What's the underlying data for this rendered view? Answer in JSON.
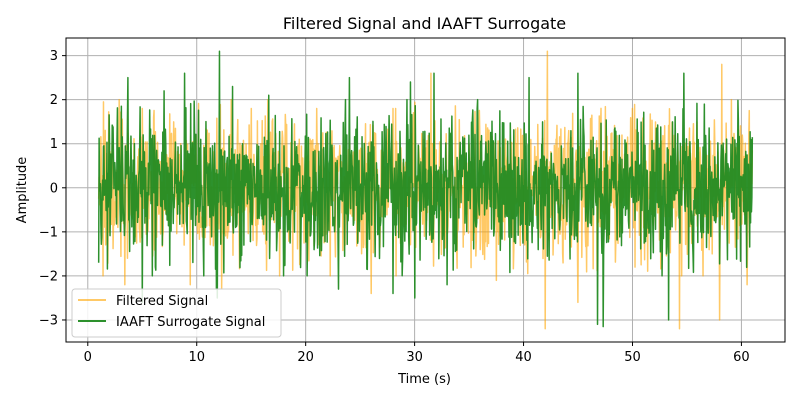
{
  "chart_data": {
    "type": "line",
    "title": "Filtered Signal and IAAFT Surrogate",
    "xlabel": "Time (s)",
    "ylabel": "Amplitude",
    "xlim": [
      -2,
      64
    ],
    "ylim": [
      -3.5,
      3.4
    ],
    "x_ticks": [
      0,
      10,
      20,
      30,
      40,
      50,
      60
    ],
    "y_ticks": [
      -3,
      -2,
      -1,
      0,
      1,
      2,
      3
    ],
    "x_tick_labels": [
      "0",
      "10",
      "20",
      "30",
      "40",
      "50",
      "60"
    ],
    "y_tick_labels": [
      "−3",
      "−2",
      "−1",
      "0",
      "1",
      "2",
      "3"
    ],
    "grid": true,
    "legend_position": "lower-left",
    "x_range": [
      1,
      61
    ],
    "series": [
      {
        "name": "Filtered Signal",
        "color": "#ffa500",
        "opacity": 0.6,
        "min": -3.2,
        "max": 3.1,
        "spikes": [
          {
            "x": 3.4,
            "y": -2.2
          },
          {
            "x": 5.0,
            "y": 1.8
          },
          {
            "x": 9.4,
            "y": -2.2
          },
          {
            "x": 12.3,
            "y": -2.3
          },
          {
            "x": 15.0,
            "y": 1.8
          },
          {
            "x": 21.0,
            "y": 1.8
          },
          {
            "x": 26.0,
            "y": -2.4
          },
          {
            "x": 28.0,
            "y": 1.8
          },
          {
            "x": 31.5,
            "y": 2.6
          },
          {
            "x": 37.5,
            "y": -2.1
          },
          {
            "x": 42.2,
            "y": 3.1
          },
          {
            "x": 42.0,
            "y": -3.2
          },
          {
            "x": 45.0,
            "y": -2.6
          },
          {
            "x": 50.0,
            "y": 1.8
          },
          {
            "x": 54.3,
            "y": -3.2
          },
          {
            "x": 58.0,
            "y": -3.0
          },
          {
            "x": 58.2,
            "y": 2.8
          },
          {
            "x": 60.5,
            "y": -2.2
          }
        ]
      },
      {
        "name": "IAAFT Surrogate Signal",
        "color": "#228b22",
        "opacity": 0.95,
        "min": -3.15,
        "max": 3.1,
        "spikes": [
          {
            "x": 1.0,
            "y": -1.7
          },
          {
            "x": 3.7,
            "y": 2.5
          },
          {
            "x": 5.0,
            "y": -2.6
          },
          {
            "x": 7.0,
            "y": 2.2
          },
          {
            "x": 8.9,
            "y": 2.6
          },
          {
            "x": 11.8,
            "y": -2.3
          },
          {
            "x": 12.1,
            "y": 3.1
          },
          {
            "x": 11.9,
            "y": -2.5
          },
          {
            "x": 13.3,
            "y": 2.3
          },
          {
            "x": 16.6,
            "y": 2.1
          },
          {
            "x": 23.0,
            "y": -2.3
          },
          {
            "x": 24.0,
            "y": 2.5
          },
          {
            "x": 28.0,
            "y": -2.4
          },
          {
            "x": 29.6,
            "y": 2.4
          },
          {
            "x": 30.0,
            "y": -2.5
          },
          {
            "x": 31.8,
            "y": 2.6
          },
          {
            "x": 33.0,
            "y": -2.2
          },
          {
            "x": 40.5,
            "y": 2.5
          },
          {
            "x": 45.0,
            "y": 2.6
          },
          {
            "x": 46.8,
            "y": -3.1
          },
          {
            "x": 47.3,
            "y": -3.15
          },
          {
            "x": 53.3,
            "y": -3.0
          },
          {
            "x": 54.7,
            "y": 2.6
          },
          {
            "x": 61.0,
            "y": 1.15
          }
        ]
      }
    ]
  }
}
